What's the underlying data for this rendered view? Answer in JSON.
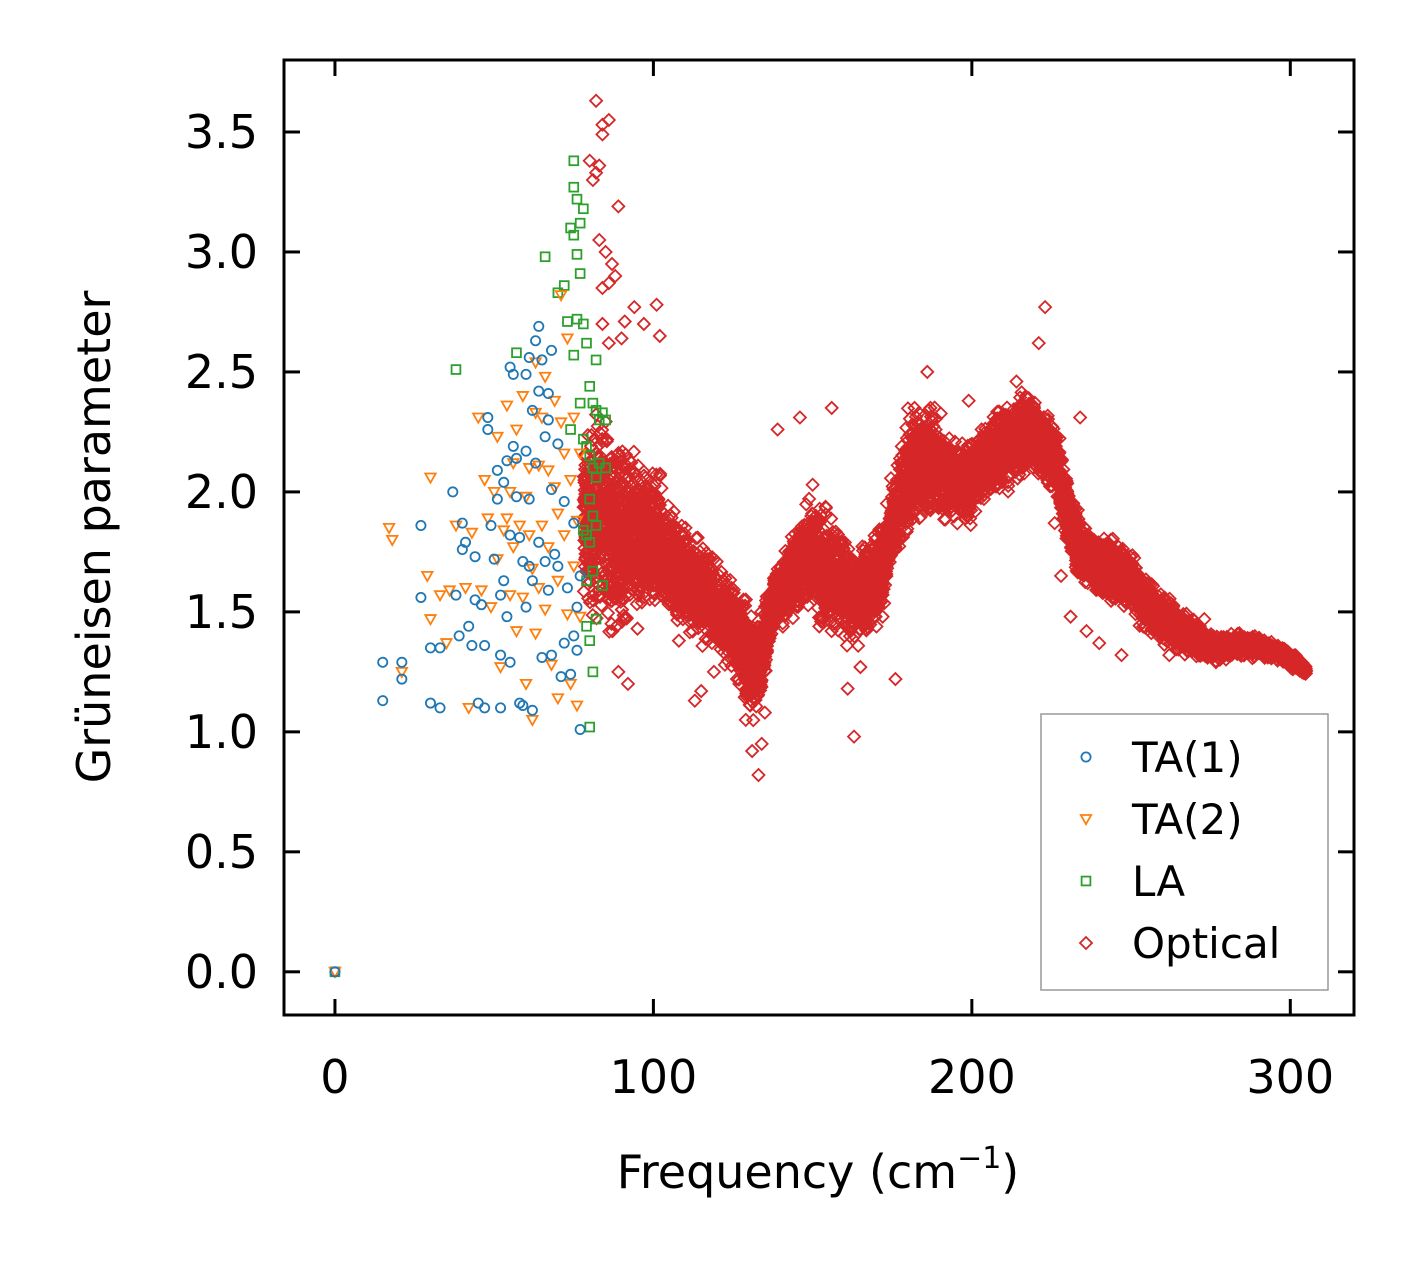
{
  "chart_data": {
    "type": "scatter",
    "xlabel": "Frequency (cm",
    "xlabel_sup": "−1",
    "xlabel_end": ")",
    "ylabel": "Grüneisen parameter",
    "xlim": [
      -16,
      320
    ],
    "ylim": [
      -0.18,
      3.8
    ],
    "xticks": [
      0,
      100,
      200,
      300
    ],
    "xtick_labels": [
      "0",
      "100",
      "200",
      "300"
    ],
    "yticks": [
      0.0,
      0.5,
      1.0,
      1.5,
      2.0,
      2.5,
      3.0,
      3.5
    ],
    "ytick_labels": [
      "0.0",
      "0.5",
      "1.0",
      "1.5",
      "2.0",
      "2.5",
      "3.0",
      "3.5"
    ],
    "legend_position": "lower-right",
    "series": [
      {
        "name": "TA(1)",
        "marker": "circle",
        "color": "#1f77b4",
        "points": [
          [
            0,
            0.0
          ],
          [
            15,
            1.29
          ],
          [
            15,
            1.13
          ],
          [
            21,
            1.29
          ],
          [
            21,
            1.22
          ],
          [
            27,
            1.56
          ],
          [
            27,
            1.86
          ],
          [
            30,
            1.35
          ],
          [
            30,
            1.12
          ],
          [
            33,
            1.35
          ],
          [
            33,
            1.1
          ],
          [
            37,
            2.0
          ],
          [
            38,
            1.57
          ],
          [
            39,
            1.4
          ],
          [
            40,
            1.87
          ],
          [
            40,
            1.76
          ],
          [
            41,
            1.79
          ],
          [
            42,
            1.44
          ],
          [
            43,
            1.36
          ],
          [
            44,
            1.55
          ],
          [
            44,
            1.73
          ],
          [
            45,
            1.12
          ],
          [
            46,
            1.53
          ],
          [
            47,
            1.36
          ],
          [
            47,
            1.1
          ],
          [
            48,
            2.26
          ],
          [
            48,
            2.31
          ],
          [
            49,
            1.86
          ],
          [
            50,
            1.72
          ],
          [
            51,
            2.09
          ],
          [
            51,
            1.97
          ],
          [
            52,
            1.57
          ],
          [
            52,
            1.32
          ],
          [
            52,
            1.1
          ],
          [
            53,
            2.04
          ],
          [
            53,
            1.63
          ],
          [
            54,
            2.13
          ],
          [
            54,
            1.48
          ],
          [
            55,
            2.52
          ],
          [
            55,
            1.82
          ],
          [
            55,
            1.29
          ],
          [
            56,
            2.19
          ],
          [
            56,
            2.49
          ],
          [
            57,
            2.14
          ],
          [
            57,
            1.98
          ],
          [
            58,
            1.12
          ],
          [
            58,
            1.81
          ],
          [
            59,
            1.71
          ],
          [
            59,
            1.11
          ],
          [
            60,
            2.49
          ],
          [
            60,
            2.17
          ],
          [
            60,
            1.52
          ],
          [
            61,
            2.56
          ],
          [
            61,
            1.97
          ],
          [
            61,
            1.69
          ],
          [
            62,
            2.34
          ],
          [
            62,
            1.63
          ],
          [
            62,
            1.09
          ],
          [
            63,
            2.63
          ],
          [
            63,
            2.12
          ],
          [
            64,
            2.69
          ],
          [
            64,
            2.42
          ],
          [
            64,
            1.79
          ],
          [
            65,
            2.55
          ],
          [
            65,
            1.31
          ],
          [
            66,
            2.23
          ],
          [
            66,
            1.71
          ],
          [
            67,
            2.41
          ],
          [
            67,
            2.3
          ],
          [
            67,
            1.59
          ],
          [
            68,
            2.59
          ],
          [
            68,
            2.01
          ],
          [
            68,
            1.32
          ],
          [
            69,
            1.74
          ],
          [
            70,
            2.2
          ],
          [
            70,
            1.69
          ],
          [
            71,
            1.23
          ],
          [
            72,
            1.96
          ],
          [
            72,
            1.37
          ],
          [
            73,
            1.6
          ],
          [
            74,
            1.24
          ],
          [
            75,
            1.87
          ],
          [
            75,
            1.4
          ],
          [
            76,
            1.52
          ],
          [
            76,
            1.34
          ],
          [
            77,
            1.65
          ],
          [
            77,
            1.01
          ]
        ]
      },
      {
        "name": "TA(2)",
        "marker": "triangle-down",
        "color": "#ff7f0e",
        "points": [
          [
            0,
            0.0
          ],
          [
            17,
            1.85
          ],
          [
            18,
            1.8
          ],
          [
            21,
            1.25
          ],
          [
            29,
            1.65
          ],
          [
            30,
            2.06
          ],
          [
            30,
            1.47
          ],
          [
            33,
            1.57
          ],
          [
            35,
            1.37
          ],
          [
            36,
            1.59
          ],
          [
            38,
            1.86
          ],
          [
            41,
            1.6
          ],
          [
            42,
            1.1
          ],
          [
            43,
            1.83
          ],
          [
            45,
            2.31
          ],
          [
            46,
            1.59
          ],
          [
            47,
            2.05
          ],
          [
            48,
            1.89
          ],
          [
            49,
            1.52
          ],
          [
            50,
            2.0
          ],
          [
            51,
            2.23
          ],
          [
            51,
            1.72
          ],
          [
            52,
            1.27
          ],
          [
            53,
            1.84
          ],
          [
            54,
            2.36
          ],
          [
            54,
            1.89
          ],
          [
            55,
            2.0
          ],
          [
            55,
            1.57
          ],
          [
            56,
            2.12
          ],
          [
            56,
            1.77
          ],
          [
            57,
            2.26
          ],
          [
            57,
            1.42
          ],
          [
            58,
            1.86
          ],
          [
            59,
            2.4
          ],
          [
            59,
            1.56
          ],
          [
            60,
            1.98
          ],
          [
            60,
            1.2
          ],
          [
            61,
            2.1
          ],
          [
            61,
            1.82
          ],
          [
            62,
            1.68
          ],
          [
            62,
            1.05
          ],
          [
            63,
            2.33
          ],
          [
            63,
            2.54
          ],
          [
            63,
            1.41
          ],
          [
            64,
            2.11
          ],
          [
            64,
            1.6
          ],
          [
            65,
            2.31
          ],
          [
            65,
            1.86
          ],
          [
            66,
            2.48
          ],
          [
            66,
            1.51
          ],
          [
            67,
            2.09
          ],
          [
            67,
            1.77
          ],
          [
            68,
            1.28
          ],
          [
            69,
            2.38
          ],
          [
            69,
            2.02
          ],
          [
            70,
            1.91
          ],
          [
            70,
            1.63
          ],
          [
            70,
            1.14
          ],
          [
            71,
            2.82
          ],
          [
            71,
            2.29
          ],
          [
            72,
            2.16
          ],
          [
            72,
            1.82
          ],
          [
            73,
            2.64
          ],
          [
            73,
            1.49
          ],
          [
            74,
            2.05
          ],
          [
            74,
            1.2
          ],
          [
            75,
            2.31
          ],
          [
            75,
            1.69
          ],
          [
            76,
            1.88
          ],
          [
            76,
            1.11
          ],
          [
            77,
            2.16
          ],
          [
            77,
            1.48
          ]
        ]
      },
      {
        "name": "LA",
        "marker": "square",
        "color": "#2ca02c",
        "points": [
          [
            0,
            0.0
          ],
          [
            38,
            2.51
          ],
          [
            57,
            2.58
          ],
          [
            66,
            2.98
          ],
          [
            70,
            2.83
          ],
          [
            72,
            2.86
          ],
          [
            73,
            2.71
          ],
          [
            74,
            3.1
          ],
          [
            74,
            2.26
          ],
          [
            75,
            3.38
          ],
          [
            75,
            3.27
          ],
          [
            75,
            3.07
          ],
          [
            75,
            2.57
          ],
          [
            76,
            3.22
          ],
          [
            76,
            2.99
          ],
          [
            76,
            2.72
          ],
          [
            77,
            3.12
          ],
          [
            77,
            2.91
          ],
          [
            77,
            2.37
          ],
          [
            78,
            3.18
          ],
          [
            78,
            2.7
          ],
          [
            78,
            2.22
          ],
          [
            78,
            1.84
          ],
          [
            79,
            2.62
          ],
          [
            79,
            2.19
          ],
          [
            79,
            1.82
          ],
          [
            79,
            1.63
          ],
          [
            79,
            1.44
          ],
          [
            80,
            2.44
          ],
          [
            80,
            2.15
          ],
          [
            80,
            1.97
          ],
          [
            80,
            1.79
          ],
          [
            80,
            1.38
          ],
          [
            80,
            1.02
          ],
          [
            81,
            2.37
          ],
          [
            81,
            2.1
          ],
          [
            81,
            1.9
          ],
          [
            81,
            1.67
          ],
          [
            81,
            1.25
          ],
          [
            82,
            2.55
          ],
          [
            82,
            2.34
          ],
          [
            82,
            2.06
          ],
          [
            82,
            1.86
          ],
          [
            82,
            1.47
          ],
          [
            83,
            2.3
          ],
          [
            83,
            2.12
          ],
          [
            84,
            2.33
          ],
          [
            84,
            1.61
          ],
          [
            85,
            2.3
          ],
          [
            85,
            2.1
          ]
        ]
      },
      {
        "name": "Optical",
        "marker": "diamond",
        "color": "#d62728",
        "points": []
      }
    ],
    "optical_band": [
      [
        78,
        1.5,
        2.25
      ],
      [
        80,
        1.38,
        2.4
      ],
      [
        84,
        1.4,
        2.45
      ],
      [
        88,
        1.3,
        2.3
      ],
      [
        92,
        1.35,
        2.25
      ],
      [
        96,
        1.38,
        2.2
      ],
      [
        100,
        1.45,
        2.2
      ],
      [
        104,
        1.4,
        2.05
      ],
      [
        108,
        1.38,
        1.95
      ],
      [
        112,
        1.35,
        1.9
      ],
      [
        116,
        1.32,
        1.82
      ],
      [
        120,
        1.3,
        1.75
      ],
      [
        124,
        1.22,
        1.68
      ],
      [
        128,
        1.12,
        1.62
      ],
      [
        131,
        0.98,
        1.52
      ],
      [
        134,
        1.1,
        1.55
      ],
      [
        138,
        1.4,
        1.72
      ],
      [
        142,
        1.42,
        1.8
      ],
      [
        146,
        1.45,
        1.95
      ],
      [
        150,
        1.45,
        2.03
      ],
      [
        154,
        1.35,
        1.98
      ],
      [
        158,
        1.38,
        1.92
      ],
      [
        162,
        1.33,
        1.8
      ],
      [
        166,
        1.35,
        1.8
      ],
      [
        170,
        1.36,
        1.88
      ],
      [
        174,
        1.58,
        2.02
      ],
      [
        178,
        1.72,
        2.32
      ],
      [
        182,
        1.8,
        2.4
      ],
      [
        186,
        1.85,
        2.46
      ],
      [
        190,
        1.83,
        2.36
      ],
      [
        194,
        1.85,
        2.24
      ],
      [
        198,
        1.8,
        2.22
      ],
      [
        202,
        1.9,
        2.28
      ],
      [
        206,
        1.95,
        2.35
      ],
      [
        210,
        1.98,
        2.42
      ],
      [
        214,
        2.0,
        2.44
      ],
      [
        218,
        2.05,
        2.44
      ],
      [
        222,
        2.0,
        2.4
      ],
      [
        226,
        1.98,
        2.33
      ],
      [
        230,
        1.72,
        2.1
      ],
      [
        234,
        1.6,
        1.92
      ],
      [
        238,
        1.58,
        1.85
      ],
      [
        242,
        1.52,
        1.85
      ],
      [
        246,
        1.5,
        1.82
      ],
      [
        250,
        1.48,
        1.78
      ],
      [
        254,
        1.4,
        1.68
      ],
      [
        258,
        1.36,
        1.62
      ],
      [
        262,
        1.34,
        1.58
      ],
      [
        266,
        1.3,
        1.52
      ],
      [
        270,
        1.3,
        1.48
      ],
      [
        274,
        1.28,
        1.44
      ],
      [
        278,
        1.28,
        1.42
      ],
      [
        282,
        1.3,
        1.42
      ],
      [
        286,
        1.3,
        1.42
      ],
      [
        290,
        1.3,
        1.4
      ],
      [
        294,
        1.3,
        1.38
      ],
      [
        298,
        1.28,
        1.36
      ],
      [
        302,
        1.25,
        1.32
      ],
      [
        305,
        1.23,
        1.28
      ]
    ],
    "optical_outliers": [
      [
        82,
        3.63
      ],
      [
        84,
        3.53
      ],
      [
        86,
        3.55
      ],
      [
        84,
        3.49
      ],
      [
        80,
        3.38
      ],
      [
        82,
        3.33
      ],
      [
        83,
        3.36
      ],
      [
        89,
        3.19
      ],
      [
        81,
        3.3
      ],
      [
        83,
        3.05
      ],
      [
        85,
        3.0
      ],
      [
        87,
        2.95
      ],
      [
        88,
        2.9
      ],
      [
        84,
        2.85
      ],
      [
        86,
        2.87
      ],
      [
        91,
        2.71
      ],
      [
        94,
        2.77
      ],
      [
        97,
        2.7
      ],
      [
        101,
        2.78
      ],
      [
        102,
        2.65
      ],
      [
        84,
        2.7
      ],
      [
        86,
        2.62
      ],
      [
        90,
        2.64
      ],
      [
        89,
        1.25
      ],
      [
        92,
        1.2
      ],
      [
        95,
        1.43
      ],
      [
        108,
        1.38
      ],
      [
        113,
        1.13
      ],
      [
        115,
        1.17
      ],
      [
        119,
        1.25
      ],
      [
        123,
        1.37
      ],
      [
        127,
        1.2
      ],
      [
        129,
        1.05
      ],
      [
        131,
        0.92
      ],
      [
        133,
        0.82
      ],
      [
        134,
        0.95
      ],
      [
        135,
        1.08
      ],
      [
        139,
        2.26
      ],
      [
        144,
        1.6
      ],
      [
        146,
        2.31
      ],
      [
        150,
        2.03
      ],
      [
        156,
        2.35
      ],
      [
        157,
        1.45
      ],
      [
        161,
        1.18
      ],
      [
        163,
        0.98
      ],
      [
        165,
        1.27
      ],
      [
        167,
        1.45
      ],
      [
        172,
        1.48
      ],
      [
        176,
        1.22
      ],
      [
        182,
        2.35
      ],
      [
        186,
        2.5
      ],
      [
        199,
        2.38
      ],
      [
        214,
        2.46
      ],
      [
        221,
        2.62
      ],
      [
        223,
        2.77
      ],
      [
        226,
        1.87
      ],
      [
        228,
        1.65
      ],
      [
        231,
        1.48
      ],
      [
        234,
        2.31
      ],
      [
        236,
        1.42
      ],
      [
        240,
        1.37
      ],
      [
        244,
        1.56
      ],
      [
        247,
        1.32
      ],
      [
        256,
        1.58
      ],
      [
        262,
        1.32
      ],
      [
        269,
        1.36
      ],
      [
        273,
        1.47
      ]
    ],
    "legend": [
      "TA(1)",
      "TA(2)",
      "LA",
      "Optical"
    ]
  }
}
